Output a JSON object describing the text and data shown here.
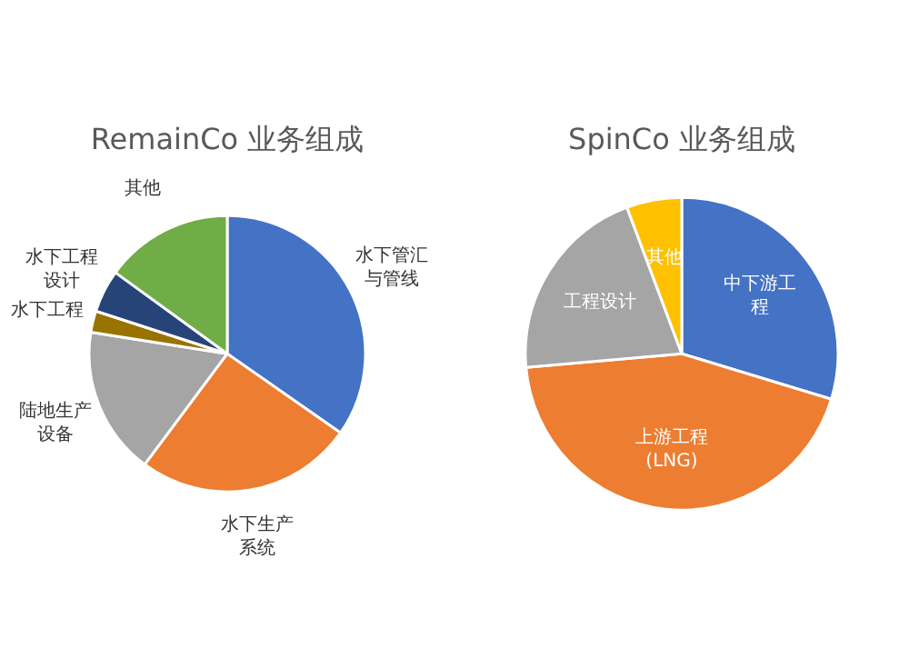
{
  "chart_data": [
    {
      "type": "pie",
      "title": "RemainCo 业务组成",
      "categories": [
        "水下管汇与管线",
        "水下生产系统",
        "陆地生产设备",
        "水下工程",
        "水下工程设计",
        "其他"
      ],
      "values": [
        34.7,
        25.5,
        17.3,
        2.5,
        5,
        15
      ],
      "colors": [
        "#4472c4",
        "#ed7d31",
        "#a5a5a5",
        "#997300",
        "#264478",
        "#70ad47"
      ],
      "legend": false
    },
    {
      "type": "pie",
      "title": "SpinCo 业务组成",
      "categories": [
        "中下游工程",
        "上游工程(LNG)",
        "工程设计",
        "其他"
      ],
      "values": [
        29.7,
        43.9,
        20.7,
        5.7
      ],
      "colors": [
        "#4472c4",
        "#ed7d31",
        "#a5a5a5",
        "#ffc000"
      ],
      "legend": false
    }
  ]
}
